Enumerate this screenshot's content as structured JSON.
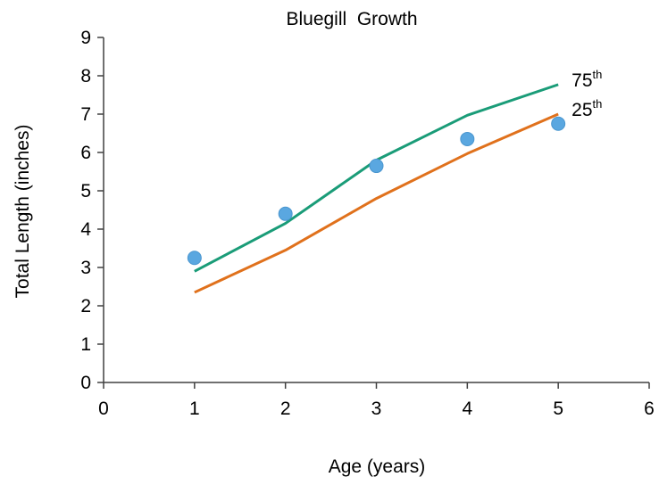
{
  "chart_data": {
    "type": "line",
    "title": "Bluegill  Growth",
    "xlabel": "Age (years)",
    "ylabel": "Total Length (inches)",
    "xlim": [
      0,
      6
    ],
    "ylim": [
      0,
      9
    ],
    "xticks": [
      "0",
      "1",
      "2",
      "3",
      "4",
      "5",
      "6"
    ],
    "yticks": [
      "0",
      "1",
      "2",
      "3",
      "4",
      "5",
      "6",
      "7",
      "8",
      "9"
    ],
    "grid": false,
    "legend": "none",
    "series": [
      {
        "name": "75th",
        "kind": "line",
        "color": "#1a9c78",
        "x": [
          1,
          2,
          3,
          4,
          5
        ],
        "y": [
          2.9,
          4.15,
          5.8,
          6.97,
          7.77
        ],
        "label_base": "75",
        "label_sup": "th"
      },
      {
        "name": "25th",
        "kind": "line",
        "color": "#e0711c",
        "x": [
          1,
          2,
          3,
          4,
          5
        ],
        "y": [
          2.35,
          3.45,
          4.8,
          5.97,
          7.0
        ],
        "label_base": "25",
        "label_sup": "th"
      },
      {
        "kind": "scatter",
        "color": "#5aa7e0",
        "x": [
          1,
          2,
          3,
          4,
          5
        ],
        "y": [
          3.25,
          4.4,
          5.65,
          6.35,
          6.75
        ]
      }
    ]
  }
}
